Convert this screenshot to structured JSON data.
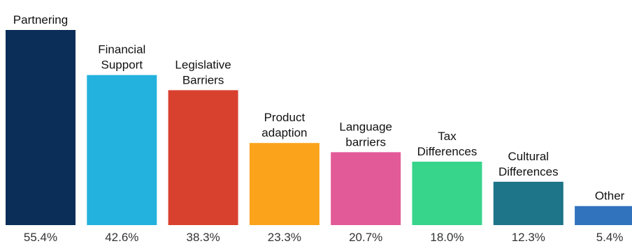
{
  "chart_data": {
    "type": "bar",
    "categories": [
      "Partnering",
      "Financial Support",
      "Legislative Barriers",
      "Product adaption",
      "Language barriers",
      "Tax Differences",
      "Cultural Differences",
      "Other"
    ],
    "category_lines": [
      [
        "Partnering"
      ],
      [
        "Financial",
        "Support"
      ],
      [
        "Legislative",
        "Barriers"
      ],
      [
        "Product",
        "adaption"
      ],
      [
        "Language",
        "barriers"
      ],
      [
        "Tax",
        "Differences"
      ],
      [
        "Cultural",
        "Differences"
      ],
      [
        "Other"
      ]
    ],
    "values": [
      55.4,
      42.6,
      38.3,
      23.3,
      20.7,
      18.0,
      12.3,
      5.4
    ],
    "value_labels": [
      "55.4%",
      "42.6%",
      "38.3%",
      "23.3%",
      "20.7%",
      "18.0%",
      "12.3%",
      "5.4%"
    ],
    "colors": [
      "#0b2e59",
      "#23b1dd",
      "#d9412f",
      "#fba41b",
      "#e35a98",
      "#37d48c",
      "#1e7488",
      "#3273be"
    ],
    "ylim": [
      0,
      55.4
    ],
    "grid": false,
    "legend": "none"
  }
}
